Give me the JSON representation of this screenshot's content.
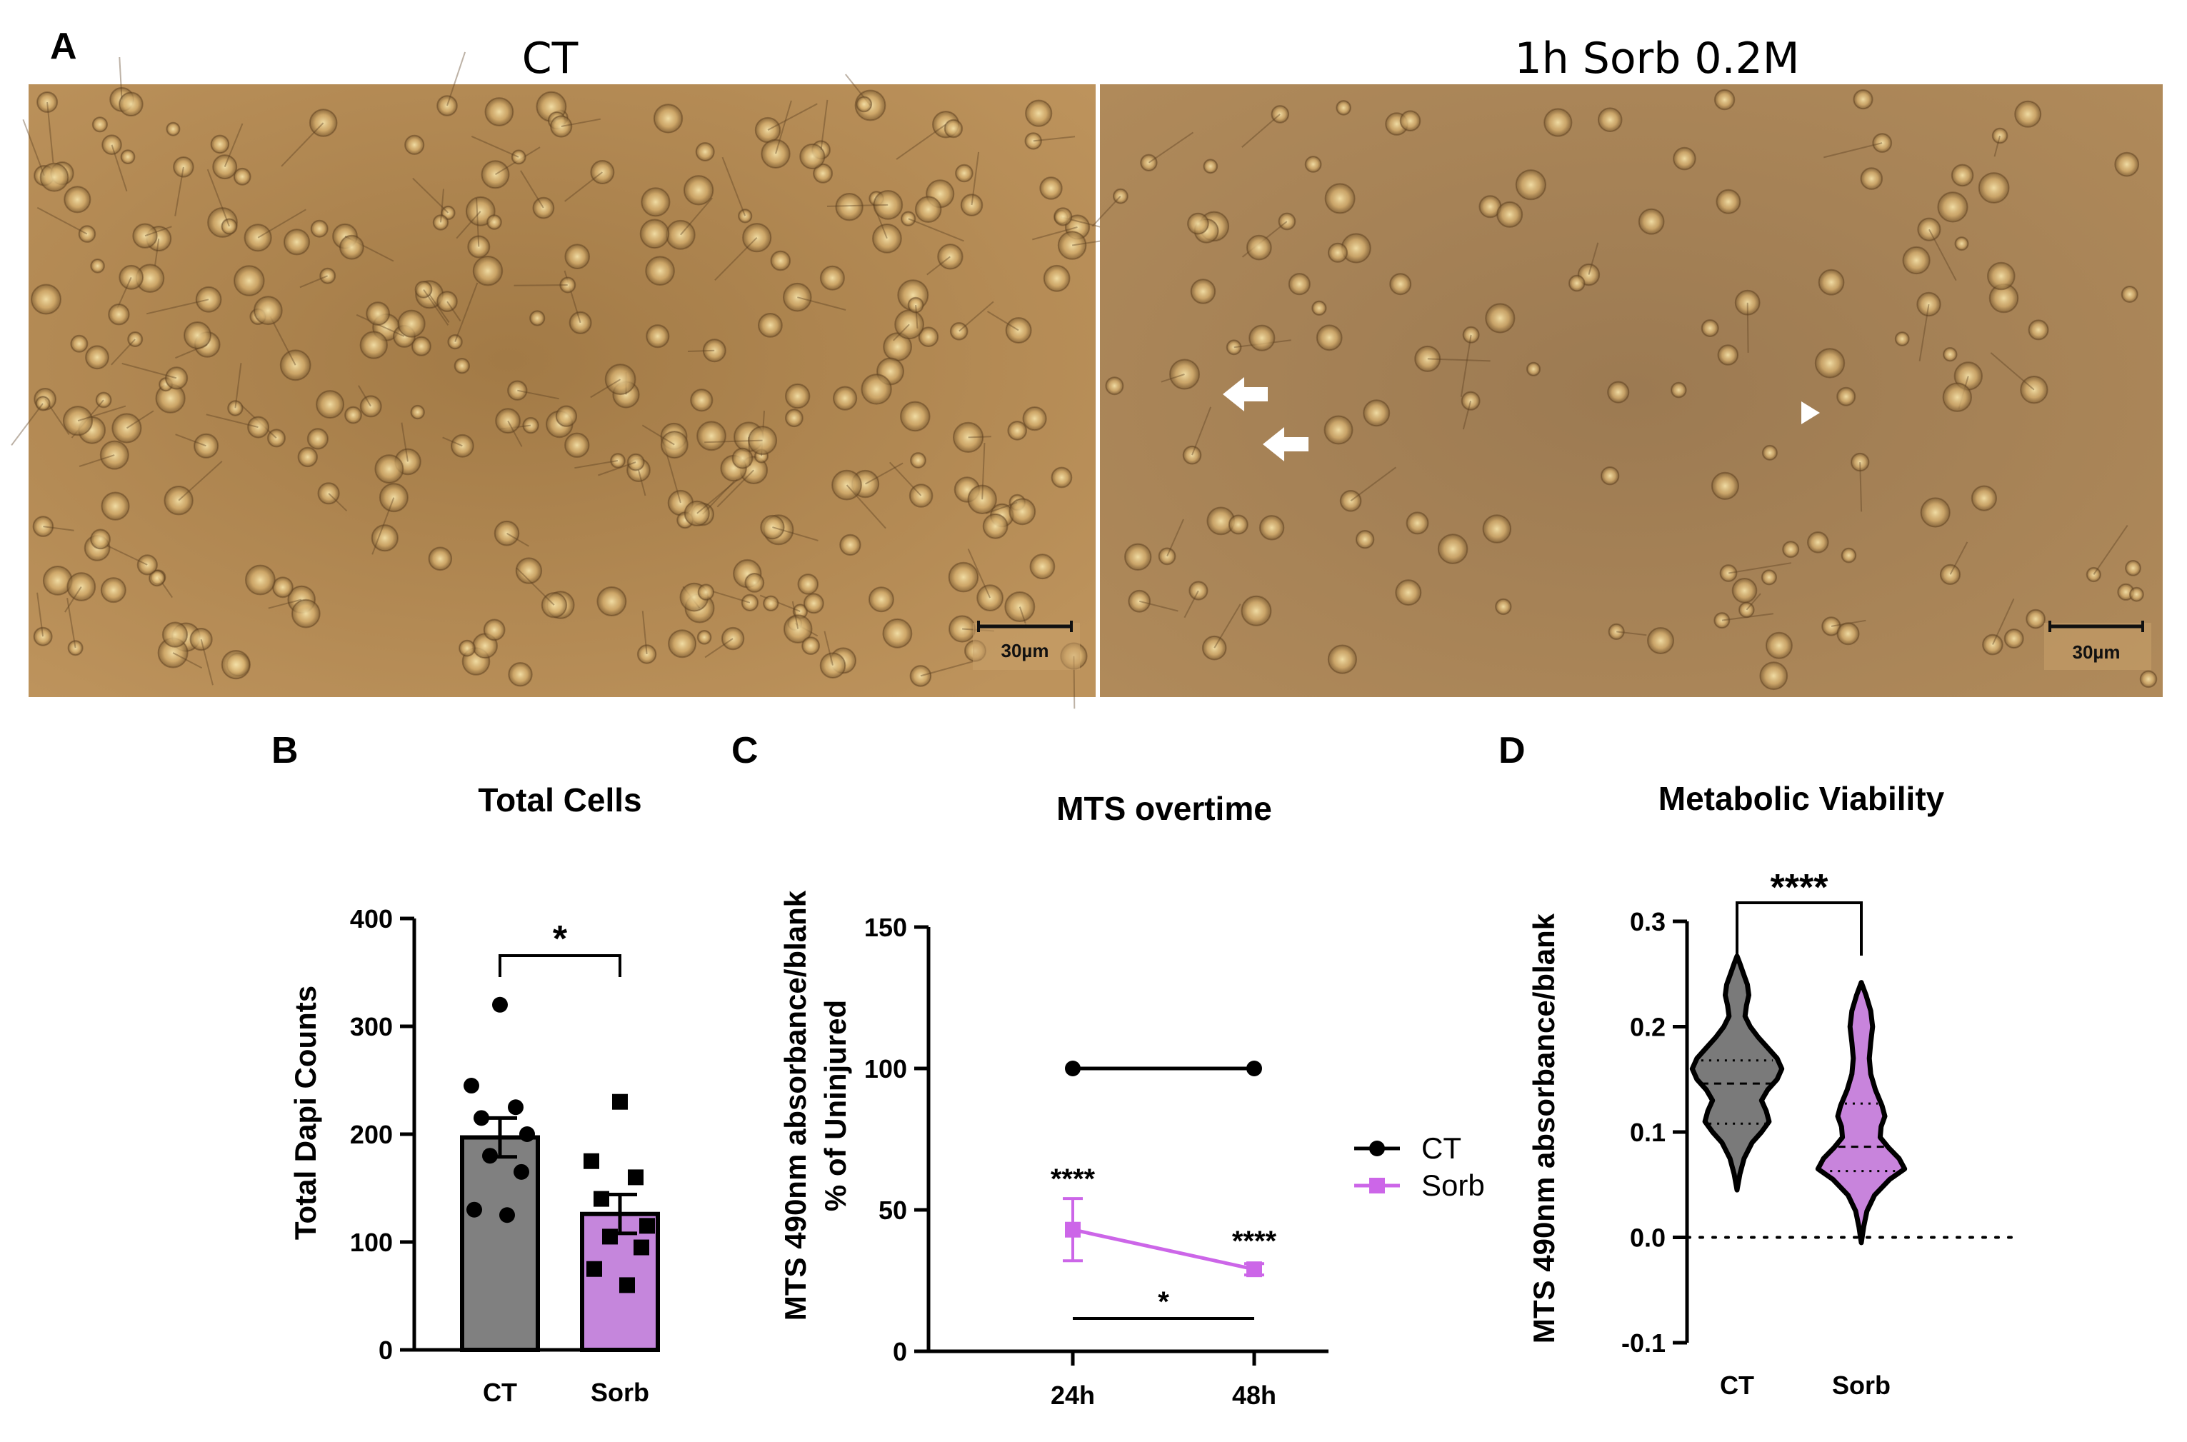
{
  "figure": {
    "panel_letters": {
      "a": "A",
      "b": "B",
      "c": "C",
      "d": "D"
    }
  },
  "panel_a": {
    "left_caption": "CT",
    "right_caption": "1h Sorb 0.2M",
    "scale_bar_label": "30µm",
    "colors": {
      "micrograph_bg": "#b48a54",
      "micrograph_right_bg": "#a58258",
      "cell": "#e6c98a"
    }
  },
  "chart_data": [
    {
      "id": "B",
      "type": "bar",
      "title": "Total Cells",
      "xlabel": "",
      "ylabel": "Total Dapi Counts",
      "ylim": [
        0,
        400
      ],
      "yticks": [
        0,
        100,
        200,
        300,
        400
      ],
      "categories": [
        "CT",
        "Sorb"
      ],
      "values": [
        197,
        126
      ],
      "sem": [
        18,
        18
      ],
      "colors": [
        "#808080",
        "#c586dc"
      ],
      "points": [
        [
          320,
          245,
          225,
          215,
          200,
          180,
          165,
          130,
          125
        ],
        [
          230,
          175,
          160,
          140,
          115,
          105,
          95,
          75,
          60
        ]
      ],
      "significance": [
        {
          "between": [
            "CT",
            "Sorb"
          ],
          "label": "*"
        }
      ]
    },
    {
      "id": "C",
      "type": "line",
      "title": "MTS overtime",
      "xlabel": "",
      "ylabel": "MTS 490nm absorbance/blank",
      "ylabel2": "% of Uninjured",
      "ylim": [
        0,
        150
      ],
      "yticks": [
        0,
        50,
        100,
        150
      ],
      "categories": [
        "24h",
        "48h"
      ],
      "series": [
        {
          "name": "CT",
          "values": [
            100,
            100
          ],
          "error": [
            0,
            0
          ],
          "color": "#000000",
          "marker": "circle"
        },
        {
          "name": "Sorb",
          "values": [
            43,
            29
          ],
          "error": [
            11,
            2
          ],
          "color": "#cc66e8",
          "marker": "square"
        }
      ],
      "significance": [
        {
          "at": "24h",
          "label": "****"
        },
        {
          "at": "48h",
          "label": "****"
        },
        {
          "between": [
            "24h",
            "48h"
          ],
          "label": "*"
        }
      ],
      "legend": "right"
    },
    {
      "id": "D",
      "type": "violin",
      "title": "Metabolic Viability",
      "xlabel": "",
      "ylabel": "MTS 490nm absorbance/blank",
      "ylim": [
        -0.1,
        0.3
      ],
      "yticks": [
        "-0.1",
        "0.0",
        "0.1",
        "0.2",
        "0.3"
      ],
      "categories": [
        "CT",
        "Sorb"
      ],
      "colors": [
        "#7a7a7a",
        "#c884dc"
      ],
      "violins": [
        {
          "min": 0.045,
          "max": 0.267,
          "q1": 0.108,
          "median": 0.146,
          "q3": 0.168,
          "profile": [
            [
              0.045,
              0.0
            ],
            [
              0.06,
              0.06
            ],
            [
              0.075,
              0.15
            ],
            [
              0.09,
              0.32
            ],
            [
              0.1,
              0.52
            ],
            [
              0.11,
              0.68
            ],
            [
              0.12,
              0.62
            ],
            [
              0.13,
              0.52
            ],
            [
              0.14,
              0.65
            ],
            [
              0.15,
              0.85
            ],
            [
              0.16,
              0.95
            ],
            [
              0.17,
              0.85
            ],
            [
              0.18,
              0.65
            ],
            [
              0.19,
              0.45
            ],
            [
              0.2,
              0.28
            ],
            [
              0.21,
              0.17
            ],
            [
              0.22,
              0.2
            ],
            [
              0.23,
              0.25
            ],
            [
              0.24,
              0.22
            ],
            [
              0.25,
              0.14
            ],
            [
              0.26,
              0.06
            ],
            [
              0.267,
              0.0
            ]
          ]
        },
        {
          "min": -0.005,
          "max": 0.242,
          "q1": 0.063,
          "median": 0.086,
          "q3": 0.127,
          "profile": [
            [
              -0.005,
              0.0
            ],
            [
              0.01,
              0.05
            ],
            [
              0.025,
              0.12
            ],
            [
              0.04,
              0.28
            ],
            [
              0.055,
              0.6
            ],
            [
              0.065,
              0.92
            ],
            [
              0.075,
              0.8
            ],
            [
              0.085,
              0.58
            ],
            [
              0.095,
              0.4
            ],
            [
              0.105,
              0.42
            ],
            [
              0.115,
              0.5
            ],
            [
              0.125,
              0.44
            ],
            [
              0.14,
              0.3
            ],
            [
              0.155,
              0.2
            ],
            [
              0.17,
              0.17
            ],
            [
              0.185,
              0.2
            ],
            [
              0.2,
              0.24
            ],
            [
              0.215,
              0.2
            ],
            [
              0.23,
              0.1
            ],
            [
              0.242,
              0.0
            ]
          ]
        }
      ],
      "reference_line": 0.0,
      "significance": [
        {
          "between": [
            "CT",
            "Sorb"
          ],
          "label": "****"
        }
      ]
    }
  ]
}
